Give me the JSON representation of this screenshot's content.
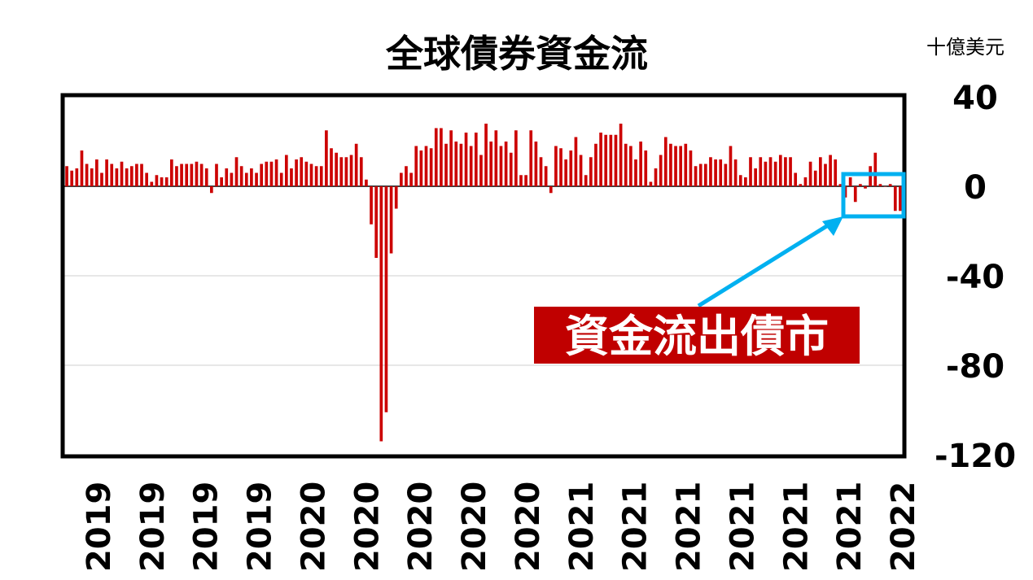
{
  "chart_data": {
    "type": "bar",
    "title": "全球債券資金流",
    "unit_label": "十億美元",
    "ylim": [
      -120,
      40
    ],
    "y_ticks": [
      {
        "value": 40,
        "label": "40"
      },
      {
        "value": 0,
        "label": "0"
      },
      {
        "value": -40,
        "label": "-40"
      },
      {
        "value": -80,
        "label": "-80"
      },
      {
        "value": -120,
        "label": "-120"
      }
    ],
    "gridlines_at": [
      -40,
      -80
    ],
    "x_tick_labels": [
      "2019",
      "2019",
      "2019",
      "2019",
      "2020",
      "2020",
      "2020",
      "2020",
      "2020",
      "2021",
      "2021",
      "2021",
      "2021",
      "2021",
      "2021",
      "2022"
    ],
    "bar_color": "#cc0000",
    "values": [
      9,
      7,
      8,
      16,
      10,
      8,
      12,
      6,
      12,
      10,
      8,
      11,
      8,
      9,
      10,
      10,
      6,
      2,
      5,
      4,
      4,
      12,
      9,
      10,
      10,
      10,
      11,
      10,
      8,
      -3,
      10,
      4,
      8,
      6,
      13,
      9,
      6,
      8,
      6,
      10,
      11,
      11,
      12,
      6,
      14,
      8,
      12,
      13,
      11,
      10,
      9,
      9,
      25,
      17,
      15,
      13,
      13,
      14,
      19,
      13,
      3,
      -17,
      -32,
      -114,
      -101,
      -30,
      -10,
      6,
      9,
      6,
      18,
      16,
      18,
      17,
      26,
      26,
      19,
      25,
      20,
      19,
      24,
      18,
      24,
      14,
      28,
      20,
      25,
      18,
      20,
      15,
      25,
      5,
      5,
      25,
      20,
      13,
      9,
      -3,
      18,
      17,
      12,
      16,
      22,
      14,
      5,
      13,
      19,
      24,
      23,
      23,
      23,
      28,
      19,
      18,
      12,
      20,
      16,
      2,
      8,
      14,
      22,
      19,
      18,
      18,
      19,
      16,
      9,
      10,
      10,
      13,
      12,
      12,
      10,
      18,
      12,
      5,
      4,
      13,
      8,
      13,
      11,
      13,
      11,
      14,
      13,
      13,
      6,
      1,
      4,
      11,
      7,
      13,
      10,
      14,
      12,
      1,
      -5,
      4,
      -7,
      1,
      -1,
      9,
      15,
      1,
      0,
      1,
      -11,
      -11
    ],
    "annotation": {
      "text": "資金流出債市",
      "color": "#c00000",
      "text_color": "#ffffff",
      "highlight_color": "#00b0f0"
    }
  }
}
